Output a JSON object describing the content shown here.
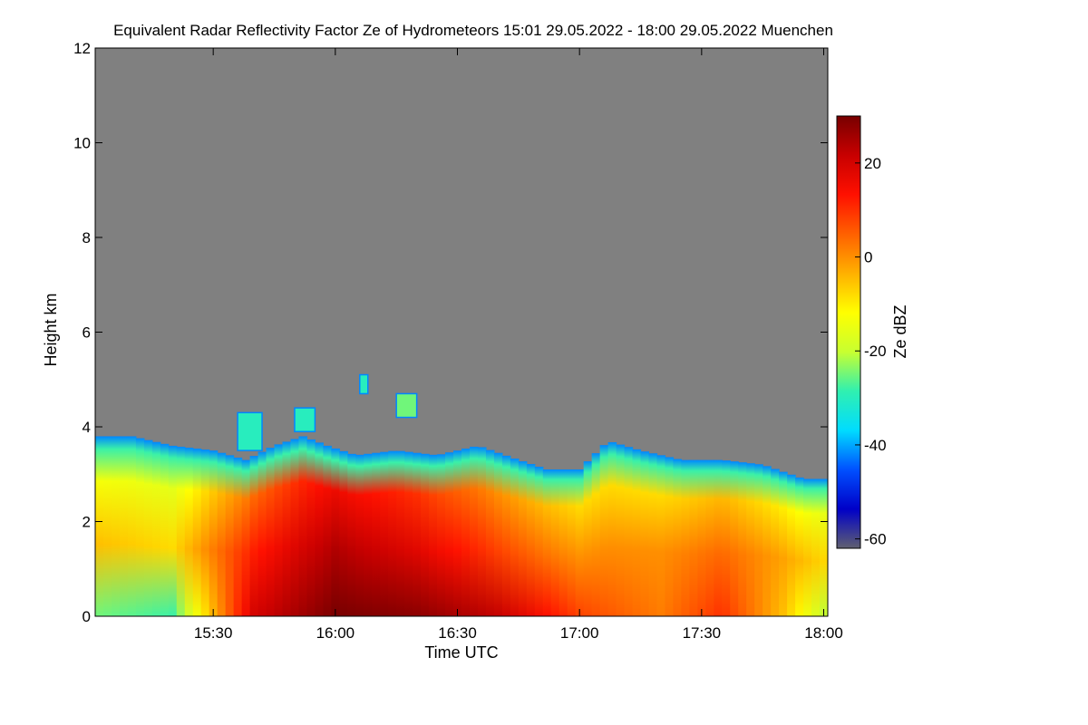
{
  "chart_data": {
    "type": "heatmap",
    "title": "Equivalent Radar Reflectivity Factor Ze of Hydrometeors   15:01 29.05.2022 - 18:00 29.05.2022 Muenchen",
    "xlabel": "Time UTC",
    "ylabel": "Height km",
    "xlim": [
      "15:01",
      "18:01"
    ],
    "ylim": [
      0,
      12
    ],
    "x_ticks": [
      "15:30",
      "16:00",
      "16:30",
      "17:00",
      "17:30",
      "18:00"
    ],
    "y_ticks": [
      "0",
      "2",
      "4",
      "6",
      "8",
      "10",
      "12"
    ],
    "background_color": "#808080",
    "colorbar": {
      "label": "Ze dBZ",
      "range": [
        -62,
        30
      ],
      "ticks": [
        "-60",
        "-40",
        "-20",
        "0",
        "20"
      ],
      "colormap": [
        "#606070",
        "#0000c8",
        "#0050ff",
        "#00dcff",
        "#30f0b0",
        "#c8ff30",
        "#ffff00",
        "#ffb000",
        "#ff6000",
        "#ff1000",
        "#c80000",
        "#780000"
      ]
    },
    "echo_top_km": [
      {
        "t": "15:01",
        "h": 3.8
      },
      {
        "t": "15:10",
        "h": 3.8
      },
      {
        "t": "15:20",
        "h": 3.6
      },
      {
        "t": "15:30",
        "h": 3.5
      },
      {
        "t": "15:38",
        "h": 3.3
      },
      {
        "t": "15:45",
        "h": 3.6
      },
      {
        "t": "15:52",
        "h": 3.8
      },
      {
        "t": "15:58",
        "h": 3.6
      },
      {
        "t": "16:05",
        "h": 3.4
      },
      {
        "t": "16:15",
        "h": 3.5
      },
      {
        "t": "16:25",
        "h": 3.4
      },
      {
        "t": "16:35",
        "h": 3.6
      },
      {
        "t": "16:45",
        "h": 3.3
      },
      {
        "t": "16:52",
        "h": 3.1
      },
      {
        "t": "17:00",
        "h": 3.1
      },
      {
        "t": "17:07",
        "h": 3.7
      },
      {
        "t": "17:15",
        "h": 3.5
      },
      {
        "t": "17:25",
        "h": 3.3
      },
      {
        "t": "17:35",
        "h": 3.3
      },
      {
        "t": "17:45",
        "h": 3.2
      },
      {
        "t": "17:55",
        "h": 2.9
      },
      {
        "t": "18:01",
        "h": 2.9
      }
    ],
    "isolated_echoes": [
      {
        "t_start": "15:36",
        "t_end": "15:42",
        "h_bottom": 3.5,
        "h_top": 4.3,
        "dbz": -30
      },
      {
        "t_start": "15:50",
        "t_end": "15:55",
        "h_bottom": 3.9,
        "h_top": 4.4,
        "dbz": -30
      },
      {
        "t_start": "16:06",
        "t_end": "16:08",
        "h_bottom": 4.7,
        "h_top": 5.1,
        "dbz": -30
      },
      {
        "t_start": "16:15",
        "t_end": "16:20",
        "h_bottom": 4.2,
        "h_top": 4.7,
        "dbz": -25
      }
    ],
    "reflectivity_profile": [
      {
        "t": "15:01",
        "dbz_surface": -25,
        "dbz_mid": -5
      },
      {
        "t": "15:20",
        "dbz_surface": -28,
        "dbz_mid": -8
      },
      {
        "t": "15:40",
        "dbz_surface": 20,
        "dbz_mid": 12
      },
      {
        "t": "16:00",
        "dbz_surface": 30,
        "dbz_mid": 24
      },
      {
        "t": "16:20",
        "dbz_surface": 28,
        "dbz_mid": 18
      },
      {
        "t": "16:40",
        "dbz_surface": 22,
        "dbz_mid": 8
      },
      {
        "t": "17:00",
        "dbz_surface": 8,
        "dbz_mid": 0
      },
      {
        "t": "17:20",
        "dbz_surface": 2,
        "dbz_mid": 0
      },
      {
        "t": "17:35",
        "dbz_surface": 10,
        "dbz_mid": 4
      },
      {
        "t": "17:50",
        "dbz_surface": -5,
        "dbz_mid": -2
      },
      {
        "t": "18:01",
        "dbz_surface": -22,
        "dbz_mid": -8
      }
    ]
  }
}
